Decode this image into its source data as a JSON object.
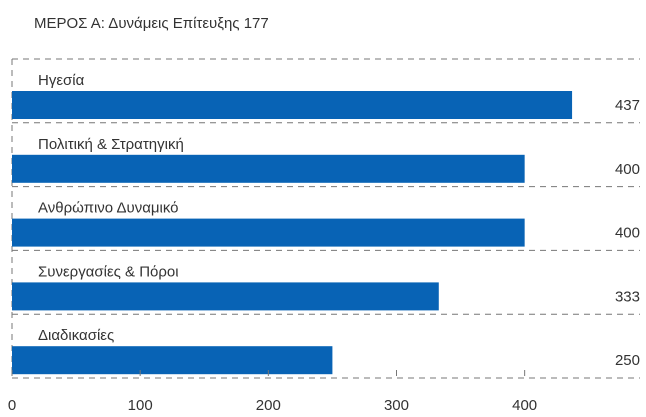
{
  "chart_data": {
    "type": "bar",
    "orientation": "horizontal",
    "title": "ΜΕΡΟΣ Α: Δυνάμεις Επίτευξης 177",
    "categories": [
      "Ηγεσία",
      "Πολιτική & Στρατηγική",
      "Ανθρώπινο Δυναμικό",
      "Συνεργασίες & Πόροι",
      "Διαδικασίες"
    ],
    "values": [
      437,
      400,
      400,
      333,
      250
    ],
    "color": "#0863b5",
    "xlim": [
      0,
      490
    ],
    "xticks": [
      0,
      100,
      200,
      300,
      400
    ]
  }
}
